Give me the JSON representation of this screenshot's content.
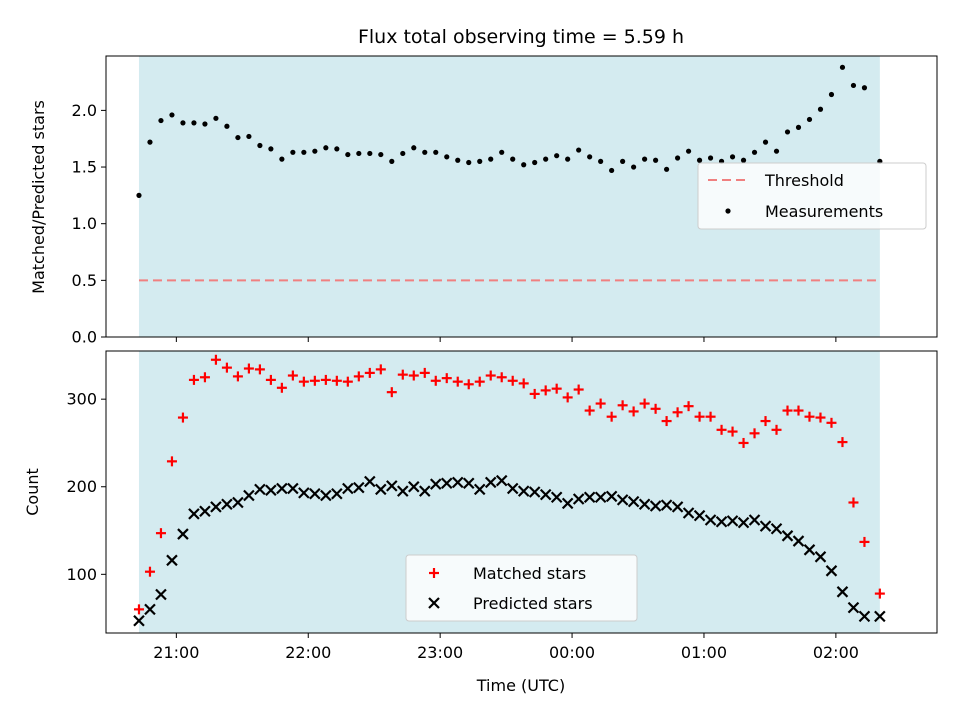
{
  "chart_data": [
    {
      "type": "scatter",
      "title": "Flux total observing time = 5.59 h",
      "xlabel": "",
      "ylabel": "Matched/Predicted stars",
      "xlim": [
        "20:28",
        "02:46"
      ],
      "ylim": [
        0,
        2.48
      ],
      "yticks": [
        0.0,
        0.5,
        1.0,
        1.5,
        2.0
      ],
      "yticklabels": [
        "0.0",
        "0.5",
        "1.0",
        "1.5",
        "2.0"
      ],
      "shaded_span": [
        "20:43",
        "02:20"
      ],
      "shade_color": "#d4ebf0",
      "legend_position": "center-right",
      "threshold": {
        "name": "Threshold",
        "value": 0.5,
        "color": "#f08080",
        "style": "dashed"
      },
      "series": [
        {
          "name": "Measurements",
          "color": "#000000",
          "marker": "dot",
          "x": [
            "20:43",
            "20:48",
            "20:53",
            "20:58",
            "21:03",
            "21:08",
            "21:13",
            "21:18",
            "21:23",
            "21:28",
            "21:33",
            "21:38",
            "21:43",
            "21:48",
            "21:53",
            "21:58",
            "22:03",
            "22:08",
            "22:13",
            "22:18",
            "22:23",
            "22:28",
            "22:33",
            "22:38",
            "22:43",
            "22:48",
            "22:53",
            "22:58",
            "23:03",
            "23:08",
            "23:13",
            "23:18",
            "23:23",
            "23:28",
            "23:33",
            "23:38",
            "23:43",
            "23:48",
            "23:53",
            "23:58",
            "00:03",
            "00:08",
            "00:13",
            "00:18",
            "00:23",
            "00:28",
            "00:33",
            "00:38",
            "00:43",
            "00:48",
            "00:53",
            "00:58",
            "01:03",
            "01:08",
            "01:13",
            "01:18",
            "01:23",
            "01:28",
            "01:33",
            "01:38",
            "01:43",
            "01:48",
            "01:53",
            "01:58",
            "02:03",
            "02:08",
            "02:13",
            "02:20"
          ],
          "y": [
            1.25,
            1.72,
            1.91,
            1.96,
            1.89,
            1.89,
            1.88,
            1.93,
            1.86,
            1.76,
            1.77,
            1.69,
            1.66,
            1.57,
            1.63,
            1.63,
            1.64,
            1.67,
            1.66,
            1.61,
            1.62,
            1.62,
            1.61,
            1.55,
            1.62,
            1.67,
            1.63,
            1.63,
            1.59,
            1.56,
            1.54,
            1.55,
            1.57,
            1.63,
            1.57,
            1.52,
            1.54,
            1.57,
            1.6,
            1.57,
            1.65,
            1.59,
            1.55,
            1.47,
            1.55,
            1.5,
            1.57,
            1.56,
            1.48,
            1.58,
            1.64,
            1.56,
            1.58,
            1.55,
            1.59,
            1.56,
            1.63,
            1.72,
            1.64,
            1.81,
            1.85,
            1.92,
            2.01,
            2.14,
            2.38,
            2.22,
            2.2,
            1.55
          ]
        }
      ]
    },
    {
      "type": "scatter",
      "title": "",
      "xlabel": "Time (UTC)",
      "ylabel": "Count",
      "xlim": [
        "20:28",
        "02:46"
      ],
      "ylim": [
        33,
        355
      ],
      "yticks": [
        100,
        200,
        300
      ],
      "yticklabels": [
        "100",
        "200",
        "300"
      ],
      "xticks": [
        "21:00",
        "22:00",
        "23:00",
        "00:00",
        "01:00",
        "02:00"
      ],
      "xticklabels": [
        "21:00",
        "22:00",
        "23:00",
        "00:00",
        "01:00",
        "02:00"
      ],
      "shaded_span": [
        "20:43",
        "02:20"
      ],
      "shade_color": "#d4ebf0",
      "legend_position": "lower-center",
      "series": [
        {
          "name": "Matched stars",
          "color": "#ff0000",
          "marker": "plus",
          "x": [
            "20:43",
            "20:48",
            "20:53",
            "20:58",
            "21:03",
            "21:08",
            "21:13",
            "21:18",
            "21:23",
            "21:28",
            "21:33",
            "21:38",
            "21:43",
            "21:48",
            "21:53",
            "21:58",
            "22:03",
            "22:08",
            "22:13",
            "22:18",
            "22:23",
            "22:28",
            "22:33",
            "22:38",
            "22:43",
            "22:48",
            "22:53",
            "22:58",
            "23:03",
            "23:08",
            "23:13",
            "23:18",
            "23:23",
            "23:28",
            "23:33",
            "23:38",
            "23:43",
            "23:48",
            "23:53",
            "23:58",
            "00:03",
            "00:08",
            "00:13",
            "00:18",
            "00:23",
            "00:28",
            "00:33",
            "00:38",
            "00:43",
            "00:48",
            "00:53",
            "00:58",
            "01:03",
            "01:08",
            "01:13",
            "01:18",
            "01:23",
            "01:28",
            "01:33",
            "01:38",
            "01:43",
            "01:48",
            "01:53",
            "01:58",
            "02:03",
            "02:08",
            "02:13",
            "02:20"
          ],
          "y": [
            60,
            103,
            147,
            229,
            279,
            322,
            325,
            345,
            336,
            326,
            335,
            334,
            322,
            313,
            327,
            320,
            321,
            322,
            321,
            320,
            326,
            330,
            334,
            308,
            328,
            327,
            330,
            321,
            324,
            320,
            317,
            320,
            327,
            325,
            321,
            318,
            306,
            310,
            312,
            302,
            311,
            287,
            295,
            280,
            293,
            286,
            295,
            289,
            275,
            285,
            292,
            280,
            280,
            265,
            263,
            250,
            261,
            275,
            265,
            287,
            287,
            280,
            279,
            273,
            251,
            182,
            137,
            78
          ]
        },
        {
          "name": "Predicted stars",
          "color": "#000000",
          "marker": "x",
          "x": [
            "20:43",
            "20:48",
            "20:53",
            "20:58",
            "21:03",
            "21:08",
            "21:13",
            "21:18",
            "21:23",
            "21:28",
            "21:33",
            "21:38",
            "21:43",
            "21:48",
            "21:53",
            "21:58",
            "22:03",
            "22:08",
            "22:13",
            "22:18",
            "22:23",
            "22:28",
            "22:33",
            "22:38",
            "22:43",
            "22:48",
            "22:53",
            "22:58",
            "23:03",
            "23:08",
            "23:13",
            "23:18",
            "23:23",
            "23:28",
            "23:33",
            "23:38",
            "23:43",
            "23:48",
            "23:53",
            "23:58",
            "00:03",
            "00:08",
            "00:13",
            "00:18",
            "00:23",
            "00:28",
            "00:33",
            "00:38",
            "00:43",
            "00:48",
            "00:53",
            "00:58",
            "01:03",
            "01:08",
            "01:13",
            "01:18",
            "01:23",
            "01:28",
            "01:33",
            "01:38",
            "01:43",
            "01:48",
            "01:53",
            "01:58",
            "02:03",
            "02:08",
            "02:13",
            "02:20"
          ],
          "y": [
            47,
            60,
            77,
            116,
            146,
            169,
            172,
            177,
            180,
            182,
            190,
            197,
            196,
            198,
            198,
            193,
            192,
            190,
            192,
            198,
            199,
            206,
            197,
            201,
            195,
            200,
            195,
            203,
            204,
            205,
            204,
            197,
            205,
            207,
            198,
            195,
            194,
            191,
            188,
            181,
            186,
            188,
            188,
            189,
            185,
            183,
            180,
            178,
            179,
            177,
            170,
            167,
            162,
            160,
            161,
            159,
            162,
            155,
            152,
            144,
            138,
            128,
            120,
            104,
            80,
            62,
            52,
            52
          ]
        }
      ]
    }
  ]
}
